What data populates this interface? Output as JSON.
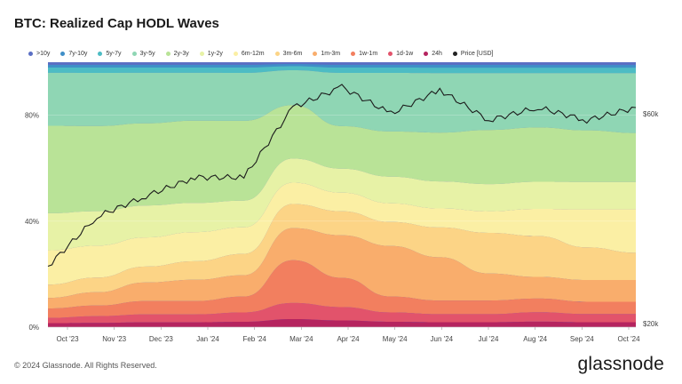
{
  "title": "BTC: Realized Cap HODL Waves",
  "footer": "© 2024 Glassnode. All Rights Reserved.",
  "brand": "glassnode",
  "legend": [
    {
      "label": ">10y",
      "color": "#5b6fc4"
    },
    {
      "label": "7y-10y",
      "color": "#3f8fc8"
    },
    {
      "label": "5y-7y",
      "color": "#4dbcc4"
    },
    {
      "label": "3y-5y",
      "color": "#8fd6b4"
    },
    {
      "label": "2y-3y",
      "color": "#b9e397"
    },
    {
      "label": "1y-2y",
      "color": "#e7f2a6"
    },
    {
      "label": "6m-12m",
      "color": "#fbefa4"
    },
    {
      "label": "3m-6m",
      "color": "#fcd486"
    },
    {
      "label": "1m-3m",
      "color": "#f9ad6c"
    },
    {
      "label": "1w-1m",
      "color": "#f27f5f"
    },
    {
      "label": "1d-1w",
      "color": "#e2536b"
    },
    {
      "label": "24h",
      "color": "#b5245f"
    },
    {
      "label": "Price [USD]",
      "color": "#222222"
    }
  ],
  "chart_data": {
    "type": "area",
    "stacked": true,
    "x": [
      "Oct '23",
      "Nov '23",
      "Dec '23",
      "Jan '24",
      "Feb '24",
      "Mar '24",
      "Apr '24",
      "May '24",
      "Jun '24",
      "Jul '24",
      "Aug '24",
      "Sep '24",
      "Oct '24"
    ],
    "y_left_ticks": [
      "0%",
      "40%",
      "80%"
    ],
    "y_right_ticks": [
      "$20k",
      "$60k"
    ],
    "ylim": [
      0,
      100
    ],
    "series": [
      {
        "name": "24h",
        "values": [
          1.5,
          1.6,
          1.8,
          1.8,
          2.0,
          3.0,
          2.5,
          2.0,
          1.8,
          1.8,
          2.0,
          1.8,
          1.8
        ]
      },
      {
        "name": "1d-1w",
        "values": [
          2.0,
          2.5,
          3.0,
          3.0,
          3.5,
          6.0,
          5.0,
          3.5,
          3.0,
          3.0,
          3.5,
          3.0,
          3.0
        ]
      },
      {
        "name": "1w-1m",
        "values": [
          3.5,
          4.0,
          5.0,
          5.0,
          6.0,
          16.0,
          11.0,
          6.0,
          5.0,
          5.0,
          5.0,
          4.5,
          4.5
        ]
      },
      {
        "name": "1m-3m",
        "values": [
          4.0,
          5.0,
          7.0,
          8.0,
          8.0,
          12.0,
          16.0,
          19.0,
          16.0,
          10.0,
          8.0,
          8.0,
          8.0
        ]
      },
      {
        "name": "3m-6m",
        "values": [
          5.0,
          5.5,
          6.0,
          7.0,
          8.0,
          9.0,
          9.0,
          9.0,
          11.0,
          15.0,
          15.0,
          12.0,
          10.0
        ]
      },
      {
        "name": "6m-12m",
        "values": [
          13.0,
          12.0,
          11.0,
          11.0,
          10.0,
          8.0,
          7.0,
          7.0,
          7.0,
          8.0,
          10.0,
          14.0,
          16.0
        ]
      },
      {
        "name": "1y-2y",
        "values": [
          14.0,
          13.0,
          12.0,
          11.0,
          10.0,
          9.0,
          9.0,
          10.0,
          10.0,
          10.0,
          10.0,
          10.0,
          10.0
        ]
      },
      {
        "name": "2y-3y",
        "values": [
          33.0,
          32.0,
          31.0,
          31.0,
          30.0,
          20.0,
          16.0,
          17.0,
          18.0,
          20.0,
          20.0,
          19.0,
          18.0
        ]
      },
      {
        "name": "3y-5y",
        "values": [
          20.0,
          20.0,
          19.0,
          18.0,
          18.0,
          13.0,
          20.0,
          22.0,
          22.0,
          21.0,
          20.0,
          21.0,
          22.0
        ]
      },
      {
        "name": "5y-7y",
        "values": [
          2.0,
          2.0,
          2.0,
          2.0,
          2.0,
          1.5,
          2.0,
          2.0,
          2.0,
          2.0,
          2.0,
          2.0,
          2.0
        ]
      },
      {
        "name": "7y-10y",
        "values": [
          1.0,
          1.0,
          1.0,
          1.0,
          1.0,
          0.8,
          1.0,
          1.0,
          1.0,
          1.0,
          1.0,
          1.0,
          1.0
        ]
      },
      {
        "name": ">10y",
        "values": [
          1.0,
          1.0,
          1.0,
          1.0,
          1.0,
          0.7,
          1.0,
          1.0,
          1.0,
          1.0,
          1.0,
          1.0,
          1.0
        ]
      }
    ],
    "price_usd": {
      "name": "Price [USD]",
      "x": [
        "Oct '23",
        "Nov '23",
        "Dec '23",
        "Jan '24",
        "Feb '24",
        "Mar '24",
        "Apr '24",
        "May '24",
        "Jun '24",
        "Jul '24",
        "Aug '24",
        "Sep '24",
        "Oct '24"
      ],
      "values": [
        27000,
        35000,
        39000,
        43000,
        43000,
        62000,
        69000,
        60000,
        68000,
        58000,
        62000,
        58000,
        62000
      ]
    }
  }
}
